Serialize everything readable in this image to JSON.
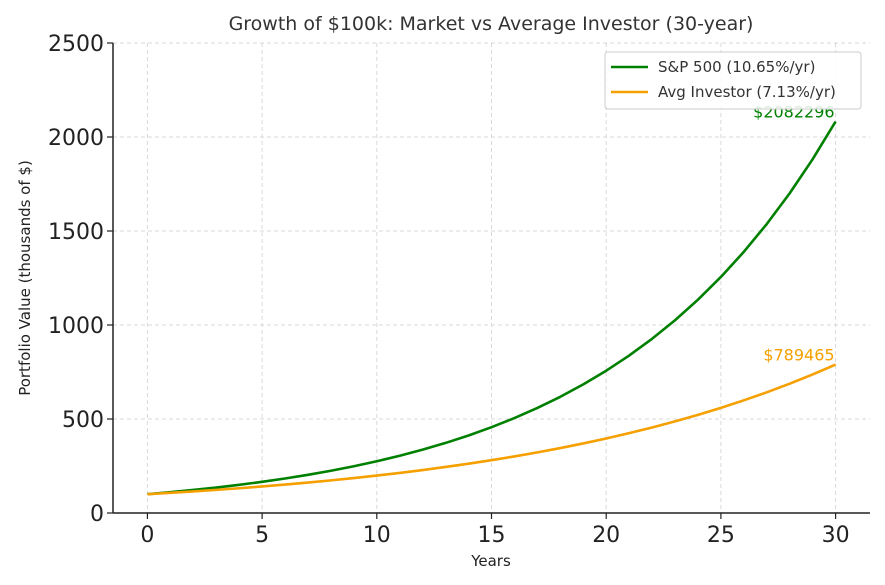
{
  "chart_data": {
    "type": "line",
    "title": "Growth of $100k: Market vs Average Investor (30-year)",
    "xlabel": "Years",
    "ylabel": "Portfolio Value (thousands of $)",
    "xlim": [
      -1.5,
      31.5
    ],
    "ylim": [
      0,
      2500
    ],
    "xticks": [
      0,
      5,
      10,
      15,
      20,
      25,
      30
    ],
    "yticks": [
      0,
      500,
      1000,
      1500,
      2000,
      2500
    ],
    "grid": true,
    "legend_position": "top-right",
    "series": [
      {
        "name": "S&P 500 (10.65%/yr)",
        "color": "#008000",
        "start": 100,
        "annual_rate": 0.1065,
        "x": [
          0,
          5,
          10,
          15,
          20,
          25,
          30
        ],
        "values": [
          100,
          166,
          275,
          456,
          756,
          1255,
          2082.296
        ],
        "end_label": "$2082296"
      },
      {
        "name": "Avg Investor (7.13%/yr)",
        "color": "#f5a000",
        "start": 100,
        "annual_rate": 0.0713,
        "x": [
          0,
          5,
          10,
          15,
          20,
          25,
          30
        ],
        "values": [
          100,
          141,
          199,
          281,
          397,
          560,
          789.465
        ],
        "end_label": "$789465"
      }
    ]
  }
}
